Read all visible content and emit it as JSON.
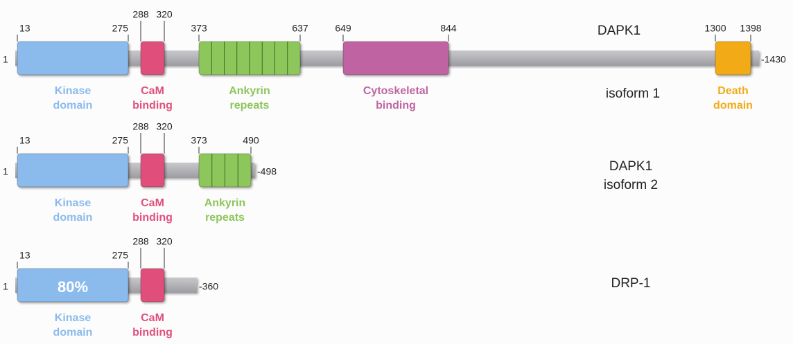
{
  "proteins": [
    {
      "name": [
        "DAPK1",
        "isoform 1"
      ],
      "start": 1,
      "end": 1430,
      "domains": [
        {
          "label": [
            "Kinase",
            "domain"
          ],
          "from": 13,
          "to": 275
        },
        {
          "label": [
            "CaM",
            "binding"
          ],
          "from": 288,
          "to": 320
        },
        {
          "label": [
            "Ankyrin",
            "repeats"
          ],
          "from": 373,
          "to": 637
        },
        {
          "label": [
            "Cytoskeletal",
            "binding"
          ],
          "from": 649,
          "to": 844
        },
        {
          "label": [
            "Death",
            "domain"
          ],
          "from": 1300,
          "to": 1398
        }
      ]
    },
    {
      "name": [
        "DAPK1",
        "isoform 2"
      ],
      "start": 1,
      "end": 498,
      "domains": [
        {
          "label": [
            "Kinase",
            "domain"
          ],
          "from": 13,
          "to": 275
        },
        {
          "label": [
            "CaM",
            "binding"
          ],
          "from": 288,
          "to": 320
        },
        {
          "label": [
            "Ankyrin",
            "repeats"
          ],
          "from": 373,
          "to": 490
        }
      ]
    },
    {
      "name": [
        "DRP-1"
      ],
      "start": 1,
      "end": 360,
      "domains": [
        {
          "label": [
            "Kinase",
            "domain"
          ],
          "from": 13,
          "to": 275,
          "annotation": "80%"
        },
        {
          "label": [
            "CaM",
            "binding"
          ],
          "from": 288,
          "to": 320
        }
      ]
    }
  ]
}
